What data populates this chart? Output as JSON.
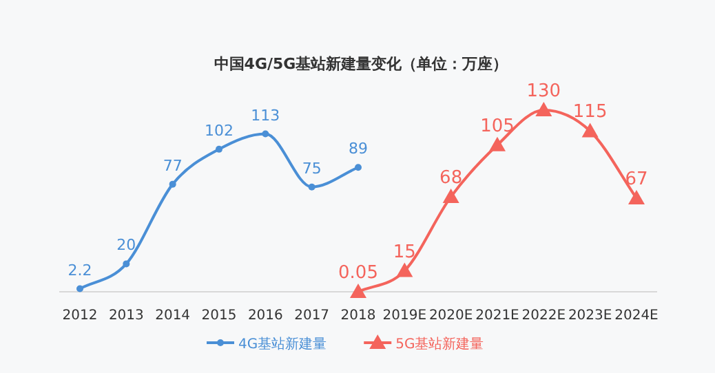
{
  "chart_data": {
    "type": "line",
    "title": "中国4G/5G基站新建量变化（单位：万座）",
    "categories": [
      "2012",
      "2013",
      "2014",
      "2015",
      "2016",
      "2017",
      "2018",
      "2019E",
      "2020E",
      "2021E",
      "2022E",
      "2023E",
      "2024E"
    ],
    "series": [
      {
        "name": "4G基站新建量",
        "color": "#4a8fd6",
        "marker": "circle",
        "values": [
          2.2,
          20,
          77,
          102,
          113,
          75,
          89,
          null,
          null,
          null,
          null,
          null,
          null
        ]
      },
      {
        "name": "5G基站新建量",
        "color": "#f4645c",
        "marker": "triangle",
        "values": [
          null,
          null,
          null,
          null,
          null,
          null,
          0.05,
          15,
          68,
          105,
          130,
          115,
          67
        ]
      }
    ],
    "data_labels": true,
    "legend": "bottom"
  }
}
